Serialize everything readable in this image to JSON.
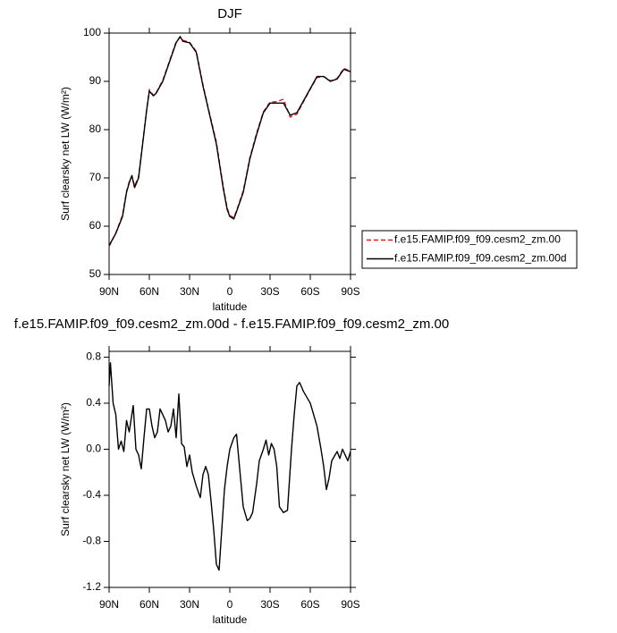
{
  "chart_data": [
    {
      "type": "line",
      "title": "DJF",
      "xlabel": "latitude",
      "ylabel": "Surf clearsky net LW (W/m²)",
      "x": [
        90,
        85,
        80,
        77,
        75,
        73,
        71,
        68,
        65,
        62,
        60,
        57,
        55,
        50,
        45,
        40,
        37,
        35,
        30,
        25,
        20,
        15,
        10,
        5,
        2,
        0,
        -3,
        -5,
        -10,
        -15,
        -20,
        -25,
        -30,
        -35,
        -40,
        -45,
        -50,
        -55,
        -60,
        -65,
        -70,
        -75,
        -80,
        -85,
        -90
      ],
      "series": [
        {
          "name": "f.e15.FAMIP.f09_f09.cesm2_zm.00",
          "color": "#e0191b",
          "dash": true,
          "values": [
            55.8,
            58.6,
            62.3,
            67.2,
            69.2,
            70.3,
            68.3,
            70.3,
            77.2,
            84.2,
            88.3,
            87.1,
            87.6,
            90.2,
            94.2,
            98.2,
            99.1,
            98.5,
            98.1,
            96.2,
            89.3,
            83.2,
            77.4,
            68.4,
            63.8,
            62.2,
            61.8,
            63.2,
            67.3,
            74.2,
            79.3,
            83.7,
            85.7,
            85.8,
            86.3,
            82.6,
            83.2,
            85.8,
            88.4,
            90.8,
            91.0,
            90.1,
            90.6,
            92.7,
            92.1
          ]
        },
        {
          "name": "f.e15.FAMIP.f09_f09.cesm2_zm.00d",
          "color": "#000000",
          "dash": false,
          "values": [
            56.0,
            58.5,
            62.0,
            67.0,
            69.0,
            70.5,
            68.0,
            70.0,
            77.0,
            84.0,
            88.0,
            87.0,
            87.5,
            90.0,
            94.0,
            98.0,
            99.3,
            98.3,
            98.0,
            96.0,
            89.0,
            83.0,
            77.0,
            68.0,
            63.5,
            62.0,
            61.5,
            63.0,
            67.0,
            74.0,
            79.0,
            83.5,
            85.5,
            85.5,
            85.5,
            83.0,
            83.5,
            86.0,
            88.5,
            91.0,
            91.0,
            90.0,
            90.5,
            92.5,
            92.0
          ]
        }
      ],
      "xlim": [
        90,
        -90
      ],
      "xticks": [
        {
          "value": 90,
          "label": "90N"
        },
        {
          "value": 60,
          "label": "60N"
        },
        {
          "value": 30,
          "label": "30N"
        },
        0,
        {
          "value": -30,
          "label": "30S"
        },
        {
          "value": -60,
          "label": "60S"
        },
        {
          "value": -90,
          "label": "90S"
        }
      ],
      "ylim": [
        50,
        100
      ],
      "yticks": [
        50,
        60,
        70,
        80,
        90,
        100
      ],
      "legend": "right"
    },
    {
      "type": "line",
      "title": "f.e15.FAMIP.f09_f09.cesm2_zm.00d - f.e15.FAMIP.f09_f09.cesm2_zm.00",
      "xlabel": "latitude",
      "ylabel": "Surf clearsky net LW (W/m²)",
      "x": [
        90,
        89,
        87,
        85,
        83,
        81,
        79,
        77,
        75,
        72,
        70,
        68,
        66,
        64,
        62,
        60,
        58,
        56,
        54,
        52,
        50,
        48,
        46,
        44,
        42,
        40,
        38,
        36,
        34,
        32,
        30,
        28,
        25,
        22,
        20,
        18,
        16,
        14,
        12,
        10,
        8,
        6,
        4,
        2,
        0,
        -3,
        -5,
        -8,
        -10,
        -13,
        -15,
        -17,
        -20,
        -22,
        -25,
        -27,
        -29,
        -31,
        -33,
        -35,
        -37,
        -40,
        -43,
        -46,
        -48,
        -50,
        -52,
        -55,
        -60,
        -65,
        -68,
        -70,
        -72,
        -74,
        -76,
        -80,
        -82,
        -84,
        -86,
        -88,
        -90
      ],
      "series": [
        {
          "name": null,
          "color": "#000000",
          "dash": false,
          "values": [
            0.55,
            0.75,
            0.4,
            0.3,
            0.0,
            0.07,
            -0.02,
            0.25,
            0.15,
            0.38,
            0.0,
            -0.05,
            -0.17,
            0.1,
            0.35,
            0.35,
            0.2,
            0.1,
            0.15,
            0.35,
            0.3,
            0.25,
            0.15,
            0.2,
            0.35,
            0.1,
            0.48,
            0.05,
            0.02,
            -0.15,
            -0.05,
            -0.2,
            -0.32,
            -0.42,
            -0.22,
            -0.15,
            -0.22,
            -0.45,
            -0.7,
            -1.0,
            -1.05,
            -0.7,
            -0.35,
            -0.15,
            0.0,
            0.1,
            0.13,
            -0.25,
            -0.5,
            -0.62,
            -0.6,
            -0.55,
            -0.3,
            -0.1,
            0.0,
            0.08,
            -0.05,
            0.05,
            0.0,
            -0.15,
            -0.5,
            -0.55,
            -0.53,
            0.0,
            0.3,
            0.55,
            0.58,
            0.5,
            0.4,
            0.2,
            0.0,
            -0.15,
            -0.35,
            -0.25,
            -0.1,
            -0.02,
            -0.08,
            0.0,
            -0.05,
            -0.1,
            -0.02
          ]
        }
      ],
      "xlim": [
        90,
        -90
      ],
      "xticks": [
        {
          "value": 90,
          "label": "90N"
        },
        {
          "value": 60,
          "label": "60N"
        },
        {
          "value": 30,
          "label": "30N"
        },
        0,
        {
          "value": -30,
          "label": "30S"
        },
        {
          "value": -60,
          "label": "60S"
        },
        {
          "value": -90,
          "label": "90S"
        }
      ],
      "ylim": [
        -1.2,
        0.85
      ],
      "yticks": [
        0.8,
        0.4,
        {
          "value": 0,
          "label": "0.0"
        },
        -0.4,
        -0.8,
        -1.2
      ]
    }
  ]
}
